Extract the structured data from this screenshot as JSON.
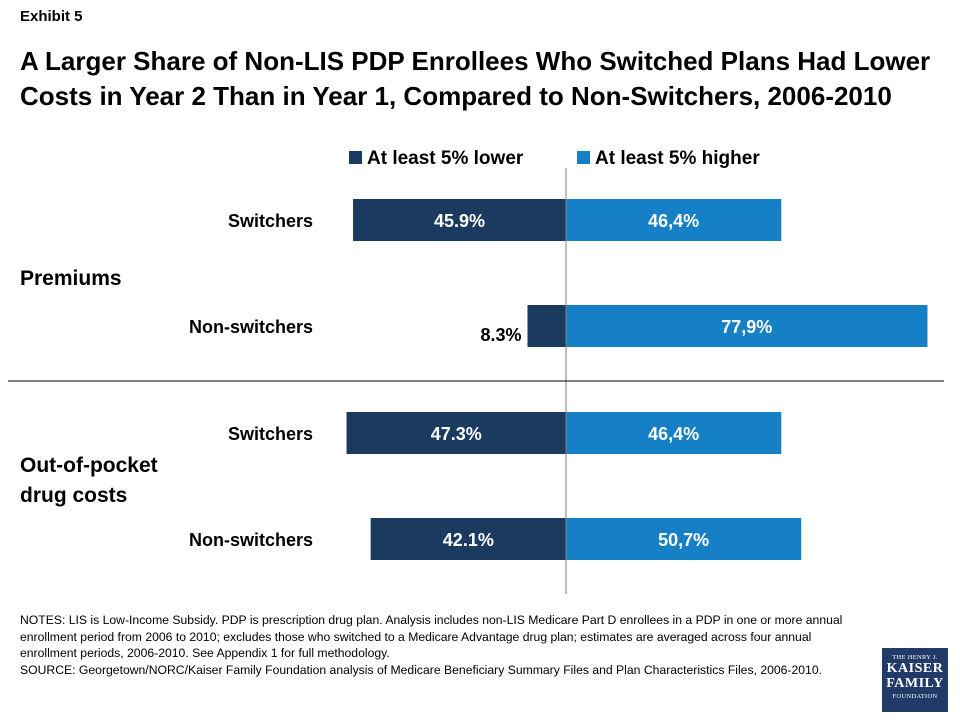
{
  "exhibit": "Exhibit 5",
  "title": "A Larger Share of Non-LIS PDP Enrollees Who Switched Plans Had Lower Costs in Year 2 Than in Year 1, Compared to Non-Switchers, 2006-2010",
  "groups": [
    {
      "label_line1": "Premiums",
      "label_line2": ""
    },
    {
      "label_line1": "Out-of-pocket",
      "label_line2": "drug costs"
    }
  ],
  "colors": {
    "lower": "#1b3a5f",
    "higher": "#1580c6",
    "axis": "#7f7f7f"
  },
  "chart_data": {
    "type": "bar",
    "orientation": "horizontal-diverging",
    "categories": [
      "Switchers",
      "Non-switchers",
      "Switchers",
      "Non-switchers"
    ],
    "series": [
      {
        "name": "At least 5% lower",
        "values": [
          45.9,
          8.3,
          47.3,
          42.1
        ],
        "labels": [
          "45.9%",
          "8.3%",
          "47.3%",
          "42.1%"
        ]
      },
      {
        "name": "At least 5% higher",
        "values": [
          46.4,
          77.9,
          46.4,
          50.7
        ],
        "labels": [
          "46,4%",
          "77,9%",
          "46,4%",
          "50,7%"
        ]
      }
    ],
    "legend_position": "top"
  },
  "notes": "NOTES: LIS is Low-Income Subsidy. PDP is prescription drug plan. Analysis includes non-LIS Medicare Part D enrollees in a PDP in one or more annual enrollment period from 2006 to 2010; excludes those who switched to a Medicare Advantage drug plan; estimates are averaged across four annual enrollment periods, 2006-2010. See Appendix 1 for full methodology.",
  "source": "SOURCE: Georgetown/NORC/Kaiser Family Foundation analysis of Medicare Beneficiary Summary Files and Plan Characteristics Files, 2006-2010.",
  "logo": {
    "line1": "THE HENRY J.",
    "line2": "KAISER",
    "line3": "FAMILY",
    "line4": "FOUNDATION"
  }
}
